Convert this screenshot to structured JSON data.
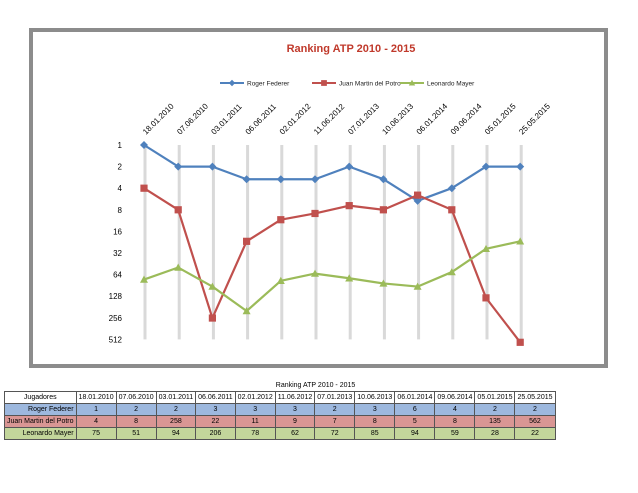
{
  "chart_data": {
    "type": "line",
    "title": "Ranking ATP 2010 - 2015",
    "y_scale": "log2",
    "y_inverted": true,
    "ylim": [
      1,
      512
    ],
    "y_ticks": [
      "1",
      "2",
      "4",
      "8",
      "16",
      "32",
      "64",
      "128",
      "256",
      "512"
    ],
    "x": [
      "18.01.2010",
      "07.06.2010",
      "03.01.2011",
      "06.06.2011",
      "02.01.2012",
      "11.06.2012",
      "07.01.2013",
      "10.06.2013",
      "06.01.2014",
      "09.06.2014",
      "05.01.2015",
      "25.05.2015"
    ],
    "legend_position": "top",
    "series": [
      {
        "name": "Roger Federer",
        "color": "#4f81bd",
        "marker": "diamond",
        "values": [
          1,
          2,
          2,
          3,
          3,
          3,
          2,
          3,
          6,
          4,
          2,
          2
        ]
      },
      {
        "name": "Juan Martin del Potro",
        "color": "#c0504d",
        "marker": "square",
        "values": [
          4,
          8,
          258,
          22,
          11,
          9,
          7,
          8,
          5,
          8,
          135,
          562
        ]
      },
      {
        "name": "Leonardo Mayer",
        "color": "#9bbb59",
        "marker": "triangle",
        "values": [
          75,
          51,
          94,
          206,
          78,
          62,
          72,
          85,
          94,
          59,
          28,
          22
        ]
      }
    ]
  },
  "table": {
    "caption": "Ranking ATP 2010 - 2015",
    "header_label": "Jugadores",
    "dates": [
      "18.01.2010",
      "07.06.2010",
      "03.01.2011",
      "06.06.2011",
      "02.01.2012",
      "11.06.2012",
      "07.01.2013",
      "10.06.2013",
      "06.01.2014",
      "09.06.2014",
      "05.01.2015",
      "25.05.2015"
    ],
    "rows": [
      {
        "player": "Roger Federer",
        "values": [
          "1",
          "2",
          "2",
          "3",
          "3",
          "3",
          "2",
          "3",
          "6",
          "4",
          "2",
          "2"
        ]
      },
      {
        "player": "Juan Martin del Potro",
        "values": [
          "4",
          "8",
          "258",
          "22",
          "11",
          "9",
          "7",
          "8",
          "5",
          "8",
          "135",
          "562"
        ]
      },
      {
        "player": "Leonardo Mayer",
        "values": [
          "75",
          "51",
          "94",
          "206",
          "78",
          "62",
          "72",
          "85",
          "94",
          "59",
          "28",
          "22"
        ]
      }
    ]
  }
}
